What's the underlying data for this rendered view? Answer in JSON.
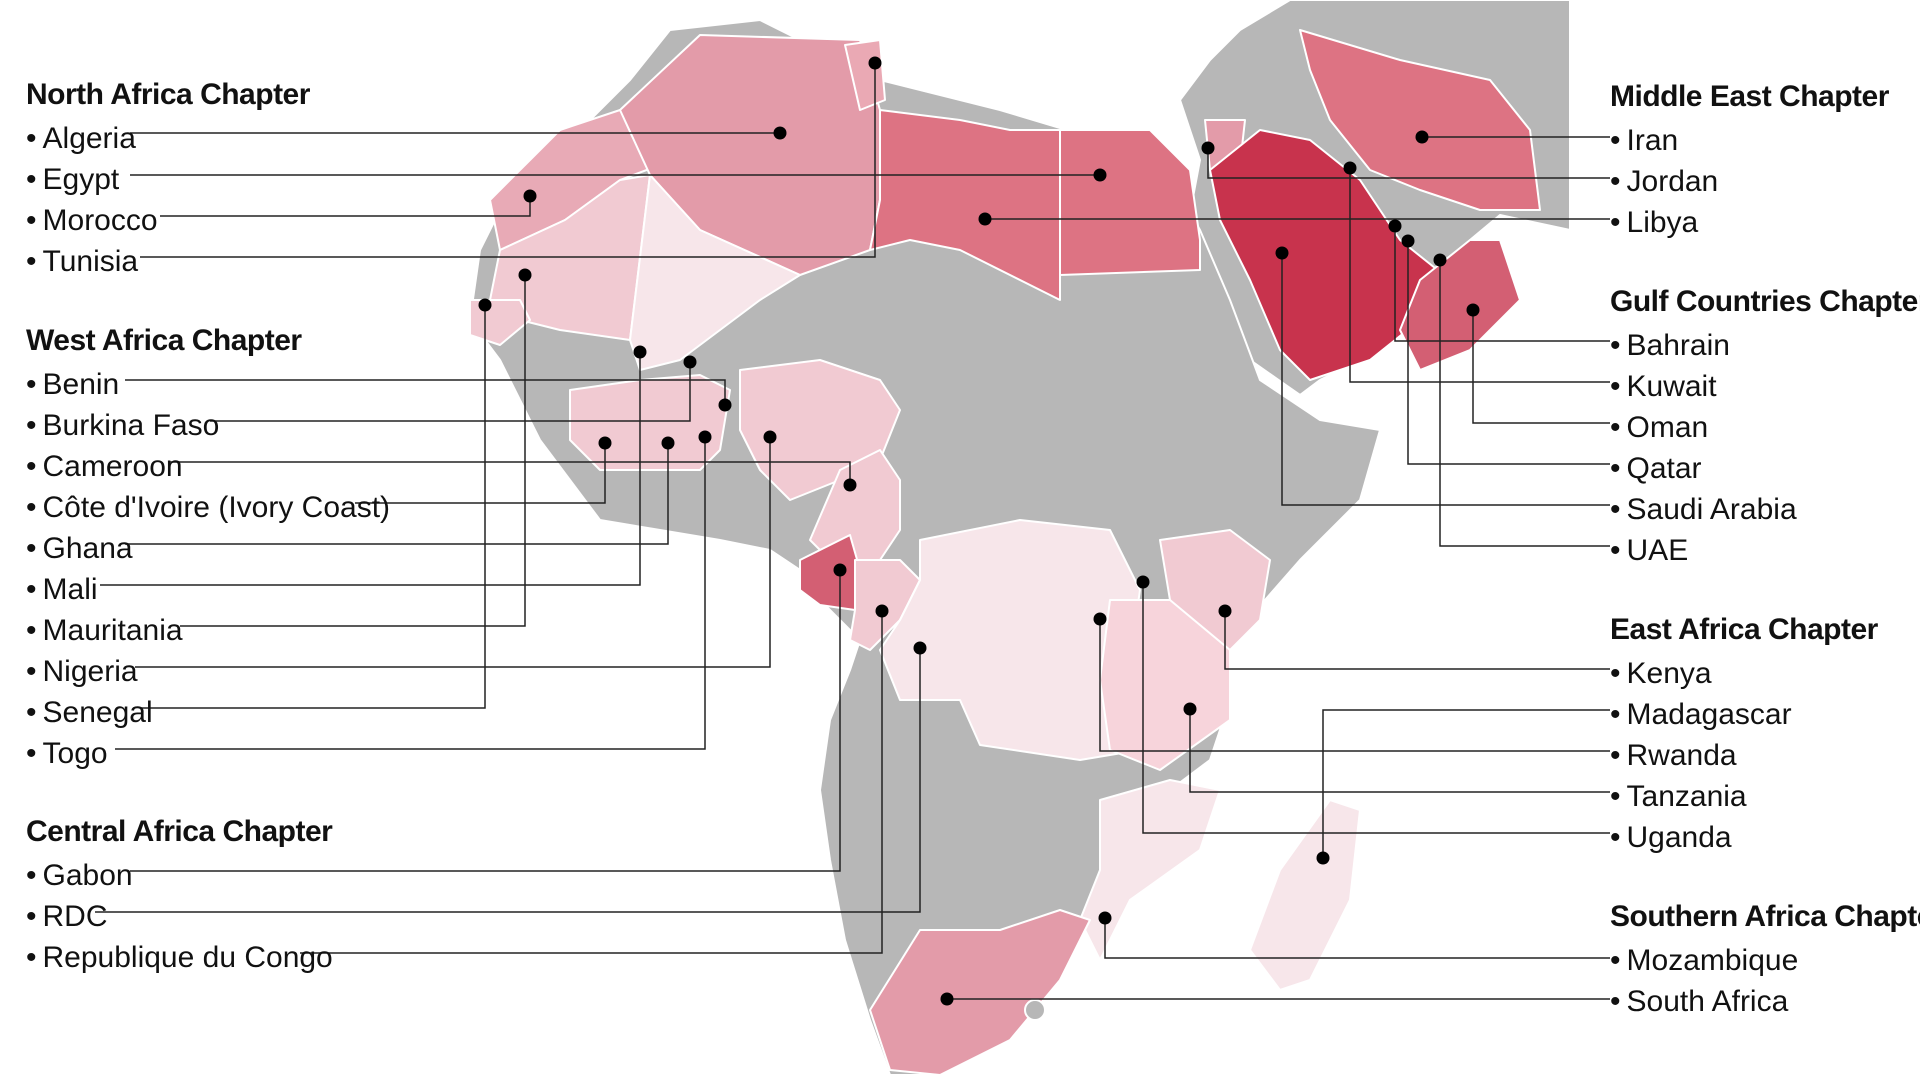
{
  "colors": {
    "grey": "#b7b7b7",
    "border": "#ffffff",
    "very_light": "#f7e6ea",
    "light": "#f1cad2",
    "medium": "#e7a3b0",
    "strong": "#dd7383",
    "darkest": "#c8334d"
  },
  "chapters": {
    "north": {
      "title": "North Africa Chapter",
      "items": [
        "Algeria",
        "Egypt",
        "Morocco",
        "Tunisia"
      ]
    },
    "west": {
      "title": "West Africa Chapter",
      "items": [
        "Benin",
        "Burkina Faso",
        "Cameroon",
        "Côte d'Ivoire (Ivory Coast)",
        "Ghana",
        "Mali",
        "Mauritania",
        "Nigeria",
        "Senegal",
        "Togo"
      ]
    },
    "central": {
      "title": "Central Africa Chapter",
      "items": [
        "Gabon",
        "RDC",
        "Republique du Congo"
      ]
    },
    "middle_east": {
      "title": "Middle East Chapter",
      "items": [
        "Iran",
        "Jordan",
        "Libya"
      ]
    },
    "gulf": {
      "title": "Gulf Countries Chapter",
      "items": [
        "Bahrain",
        "Kuwait",
        "Oman",
        "Qatar",
        "Saudi Arabia",
        "UAE"
      ]
    },
    "east": {
      "title": "East Africa Chapter",
      "items": [
        "Kenya",
        "Madagascar",
        "Rwanda",
        "Tanzania",
        "Uganda"
      ]
    },
    "southern": {
      "title": "Southern Africa Chapter",
      "items": [
        "Mozambique",
        "South Africa"
      ]
    }
  }
}
